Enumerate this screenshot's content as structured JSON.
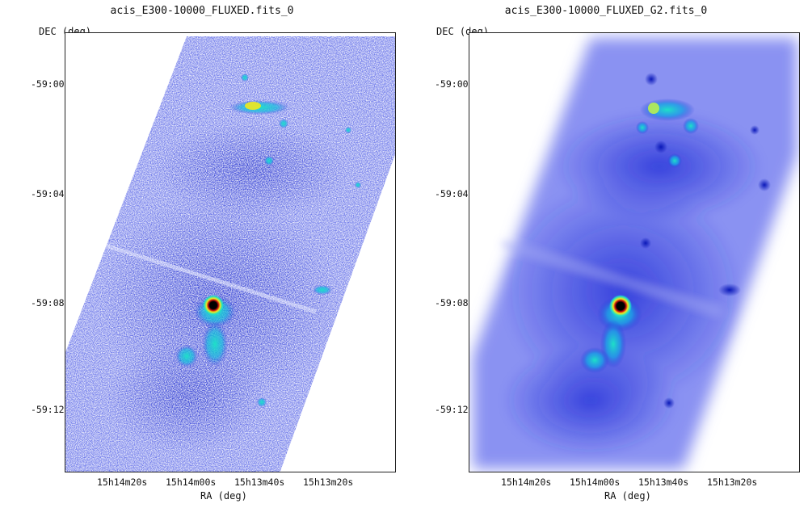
{
  "panels": [
    {
      "title": "acis_E300-10000_FLUXED.fits_0",
      "ylabel": "DEC (deg)",
      "xlabel": "RA (deg)",
      "y_ticks": [
        "-59:00",
        "-59:04",
        "-59:08",
        "-59:12"
      ],
      "x_ticks": [
        "15h14m20s",
        "15h14m00s",
        "15h13m40s",
        "15h13m20s"
      ],
      "style": "noisy"
    },
    {
      "title": "acis_E300-10000_FLUXED_G2.fits_0",
      "ylabel": "DEC (deg)",
      "xlabel": "RA (deg)",
      "y_ticks": [
        "-59:00",
        "-59:04",
        "-59:08",
        "-59:12"
      ],
      "x_ticks": [
        "15h14m20s",
        "15h14m00s",
        "15h13m40s",
        "15h13m20s"
      ],
      "style": "smoothed"
    }
  ],
  "colors": {
    "background": "#ffffff",
    "map_low": "#7d86f0",
    "map_mid": "#2030d8",
    "hot_cyan": "#1ee0c8",
    "hot_yellow": "#f2e81c",
    "core_red": "#c81010",
    "core_black": "#000000"
  }
}
